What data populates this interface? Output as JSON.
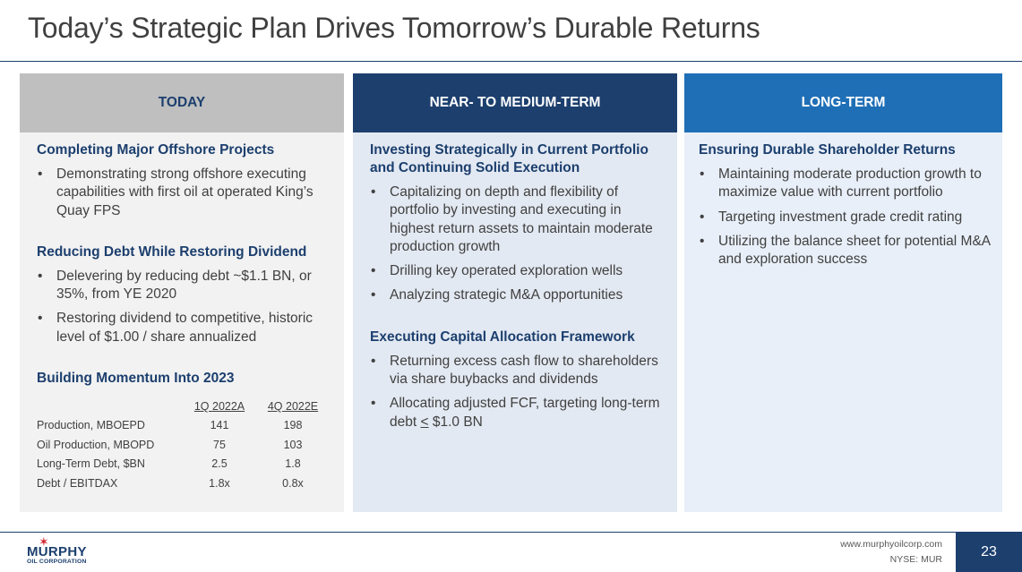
{
  "title": "Today’s Strategic Plan Drives Tomorrow’s Durable Returns",
  "columns": [
    {
      "header": "TODAY",
      "sections": [
        {
          "heading": "Completing Major Offshore Projects",
          "bullets": [
            "Demonstrating strong offshore executing capabilities with first oil at operated King’s Quay FPS"
          ]
        },
        {
          "heading": "Reducing Debt While Restoring Dividend",
          "bullets": [
            "Delevering by reducing debt ~$1.1 BN, or 35%, from YE 2020",
            "Restoring dividend to competitive, historic level of $1.00 / share annualized"
          ]
        },
        {
          "heading": "Building Momentum Into 2023",
          "bullets": []
        }
      ],
      "metrics": {
        "col1": "1Q 2022A",
        "col2": "4Q 2022E",
        "rows": [
          {
            "label": "Production, MBOEPD",
            "v1": "141",
            "v2": "198"
          },
          {
            "label": "Oil Production, MBOPD",
            "v1": "75",
            "v2": "103"
          },
          {
            "label": "Long-Term Debt, $BN",
            "v1": "2.5",
            "v2": "1.8"
          },
          {
            "label": "Debt / EBITDAX",
            "v1": "1.8x",
            "v2": "0.8x"
          }
        ]
      }
    },
    {
      "header": "NEAR- TO MEDIUM-TERM",
      "sections": [
        {
          "heading": "Investing Strategically in Current Portfolio and Continuing Solid Execution",
          "bullets": [
            "Capitalizing on depth and flexibility of portfolio by investing and executing in highest return assets to maintain moderate production growth",
            "Drilling key operated exploration wells",
            "Analyzing strategic M&A opportunities"
          ]
        },
        {
          "heading": "Executing Capital Allocation Framework",
          "bullets": [
            "Returning excess cash flow to shareholders via share buybacks and dividends"
          ]
        }
      ],
      "last_bullet": {
        "before": "Allocating adjusted FCF, targeting long-term debt ",
        "underlined": "<",
        "after": " $1.0 BN"
      }
    },
    {
      "header": "LONG-TERM",
      "sections": [
        {
          "heading": "Ensuring Durable Shareholder Returns",
          "bullets": [
            "Maintaining moderate production growth to maximize value with current portfolio",
            "Targeting investment grade credit rating",
            "Utilizing the balance sheet for potential M&A and exploration success"
          ]
        }
      ]
    }
  ],
  "footer": {
    "logo_name": "MURPHY",
    "logo_sub": "OIL CORPORATION",
    "url": "www.murphyoilcorp.com",
    "ticker": "NYSE: MUR",
    "page": "23"
  },
  "colors": {
    "navy": "#1c3f6e",
    "blue": "#1f6fb7",
    "gray_header": "#bfbfbf",
    "red_star": "#d22630"
  }
}
